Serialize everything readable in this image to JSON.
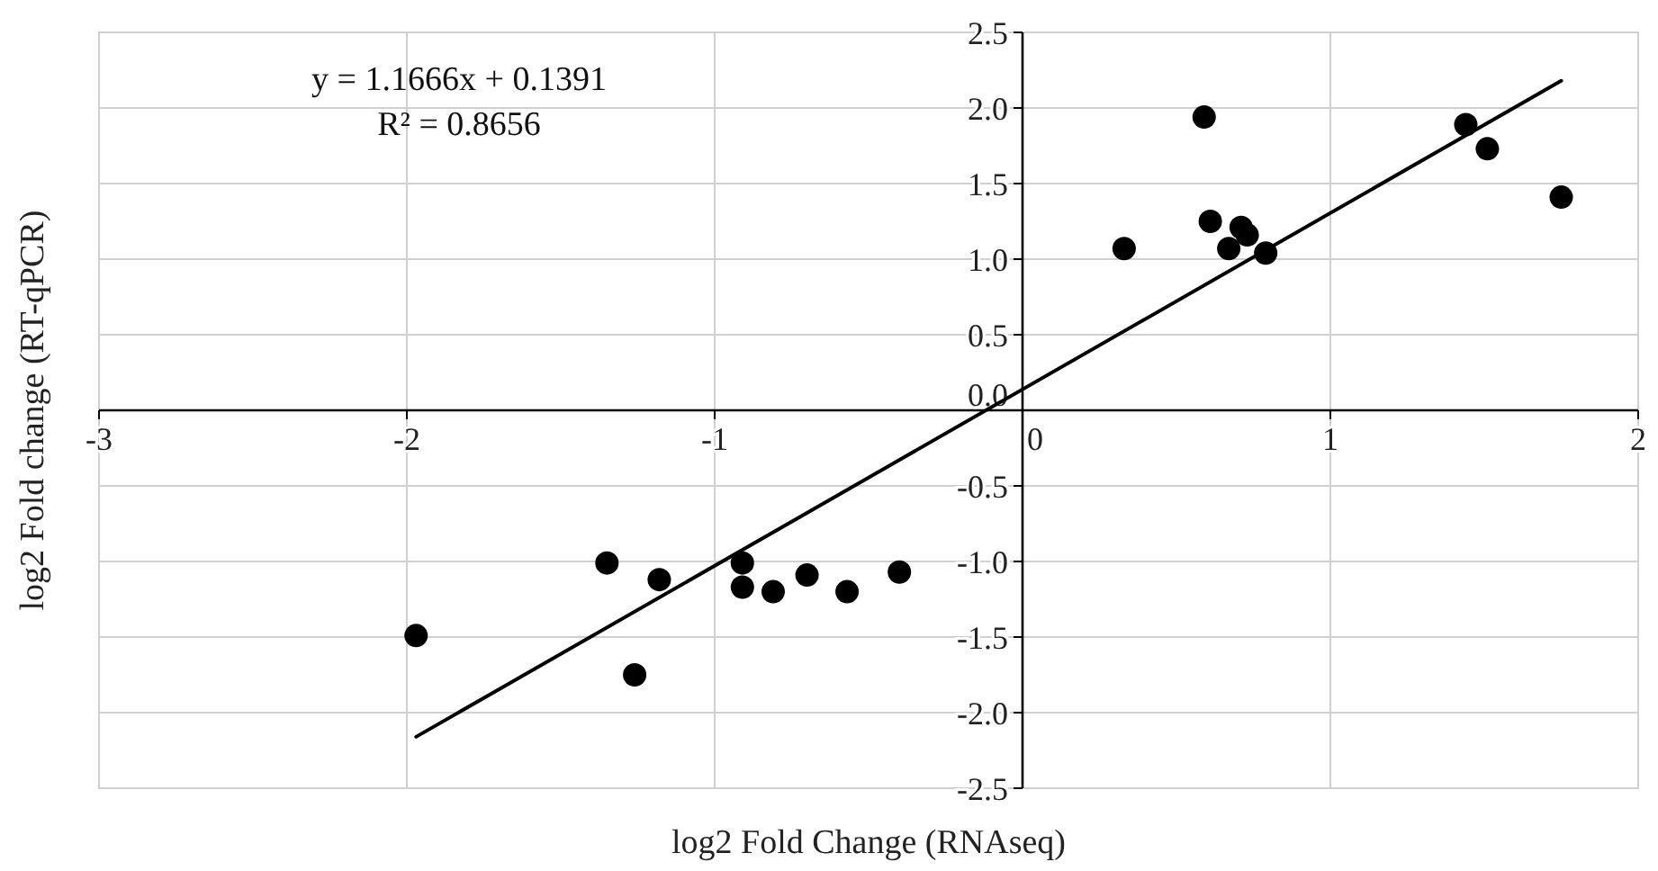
{
  "chart_data": {
    "type": "scatter",
    "xlabel": "log2 Fold Change  (RNAseq)",
    "ylabel": "log2 Fold change  (RT-qPCR)",
    "annotations": [
      "y = 1.1666x + 0.1391",
      "R² = 0.8656"
    ],
    "xlim": [
      -3,
      2
    ],
    "xticks": [
      -3,
      -2,
      -1,
      0,
      1,
      2
    ],
    "ylim": [
      -2.5,
      2.5
    ],
    "yticks": [
      {
        "value": -2.5,
        "label": "-2.5"
      },
      {
        "value": -2,
        "label": "-2.0"
      },
      {
        "value": -1.5,
        "label": "-1.5"
      },
      {
        "value": -1,
        "label": "-1.0"
      },
      {
        "value": -0.5,
        "label": "-0.5"
      },
      {
        "value": 0,
        "label": "0.0"
      },
      {
        "value": 0.5,
        "label": "0.5"
      },
      {
        "value": 1,
        "label": "1.0"
      },
      {
        "value": 1.5,
        "label": "1.5"
      },
      {
        "value": 2,
        "label": "2.0"
      },
      {
        "value": 2.5,
        "label": "2.5"
      }
    ],
    "grid": true,
    "series": [
      {
        "type": "scatter",
        "color": "#000000",
        "marker": "circle",
        "x": [
          -1.97,
          -1.35,
          -1.18,
          -1.26,
          -0.91,
          -0.91,
          -0.81,
          -0.7,
          -0.57,
          -0.4,
          0.33,
          0.59,
          0.61,
          0.67,
          0.71,
          0.73,
          0.79,
          1.44,
          1.51,
          1.75
        ],
        "values": [
          -1.49,
          -1.01,
          -1.12,
          -1.75,
          -1.01,
          -1.17,
          -1.2,
          -1.09,
          -1.2,
          -1.07,
          1.07,
          1.94,
          1.25,
          1.07,
          1.21,
          1.16,
          1.04,
          1.89,
          1.73,
          1.41
        ]
      },
      {
        "type": "line",
        "color": "#000000",
        "line_style": "solid",
        "x": [
          -1.97,
          1.75
        ],
        "values": [
          -2.16,
          2.18
        ]
      }
    ]
  }
}
